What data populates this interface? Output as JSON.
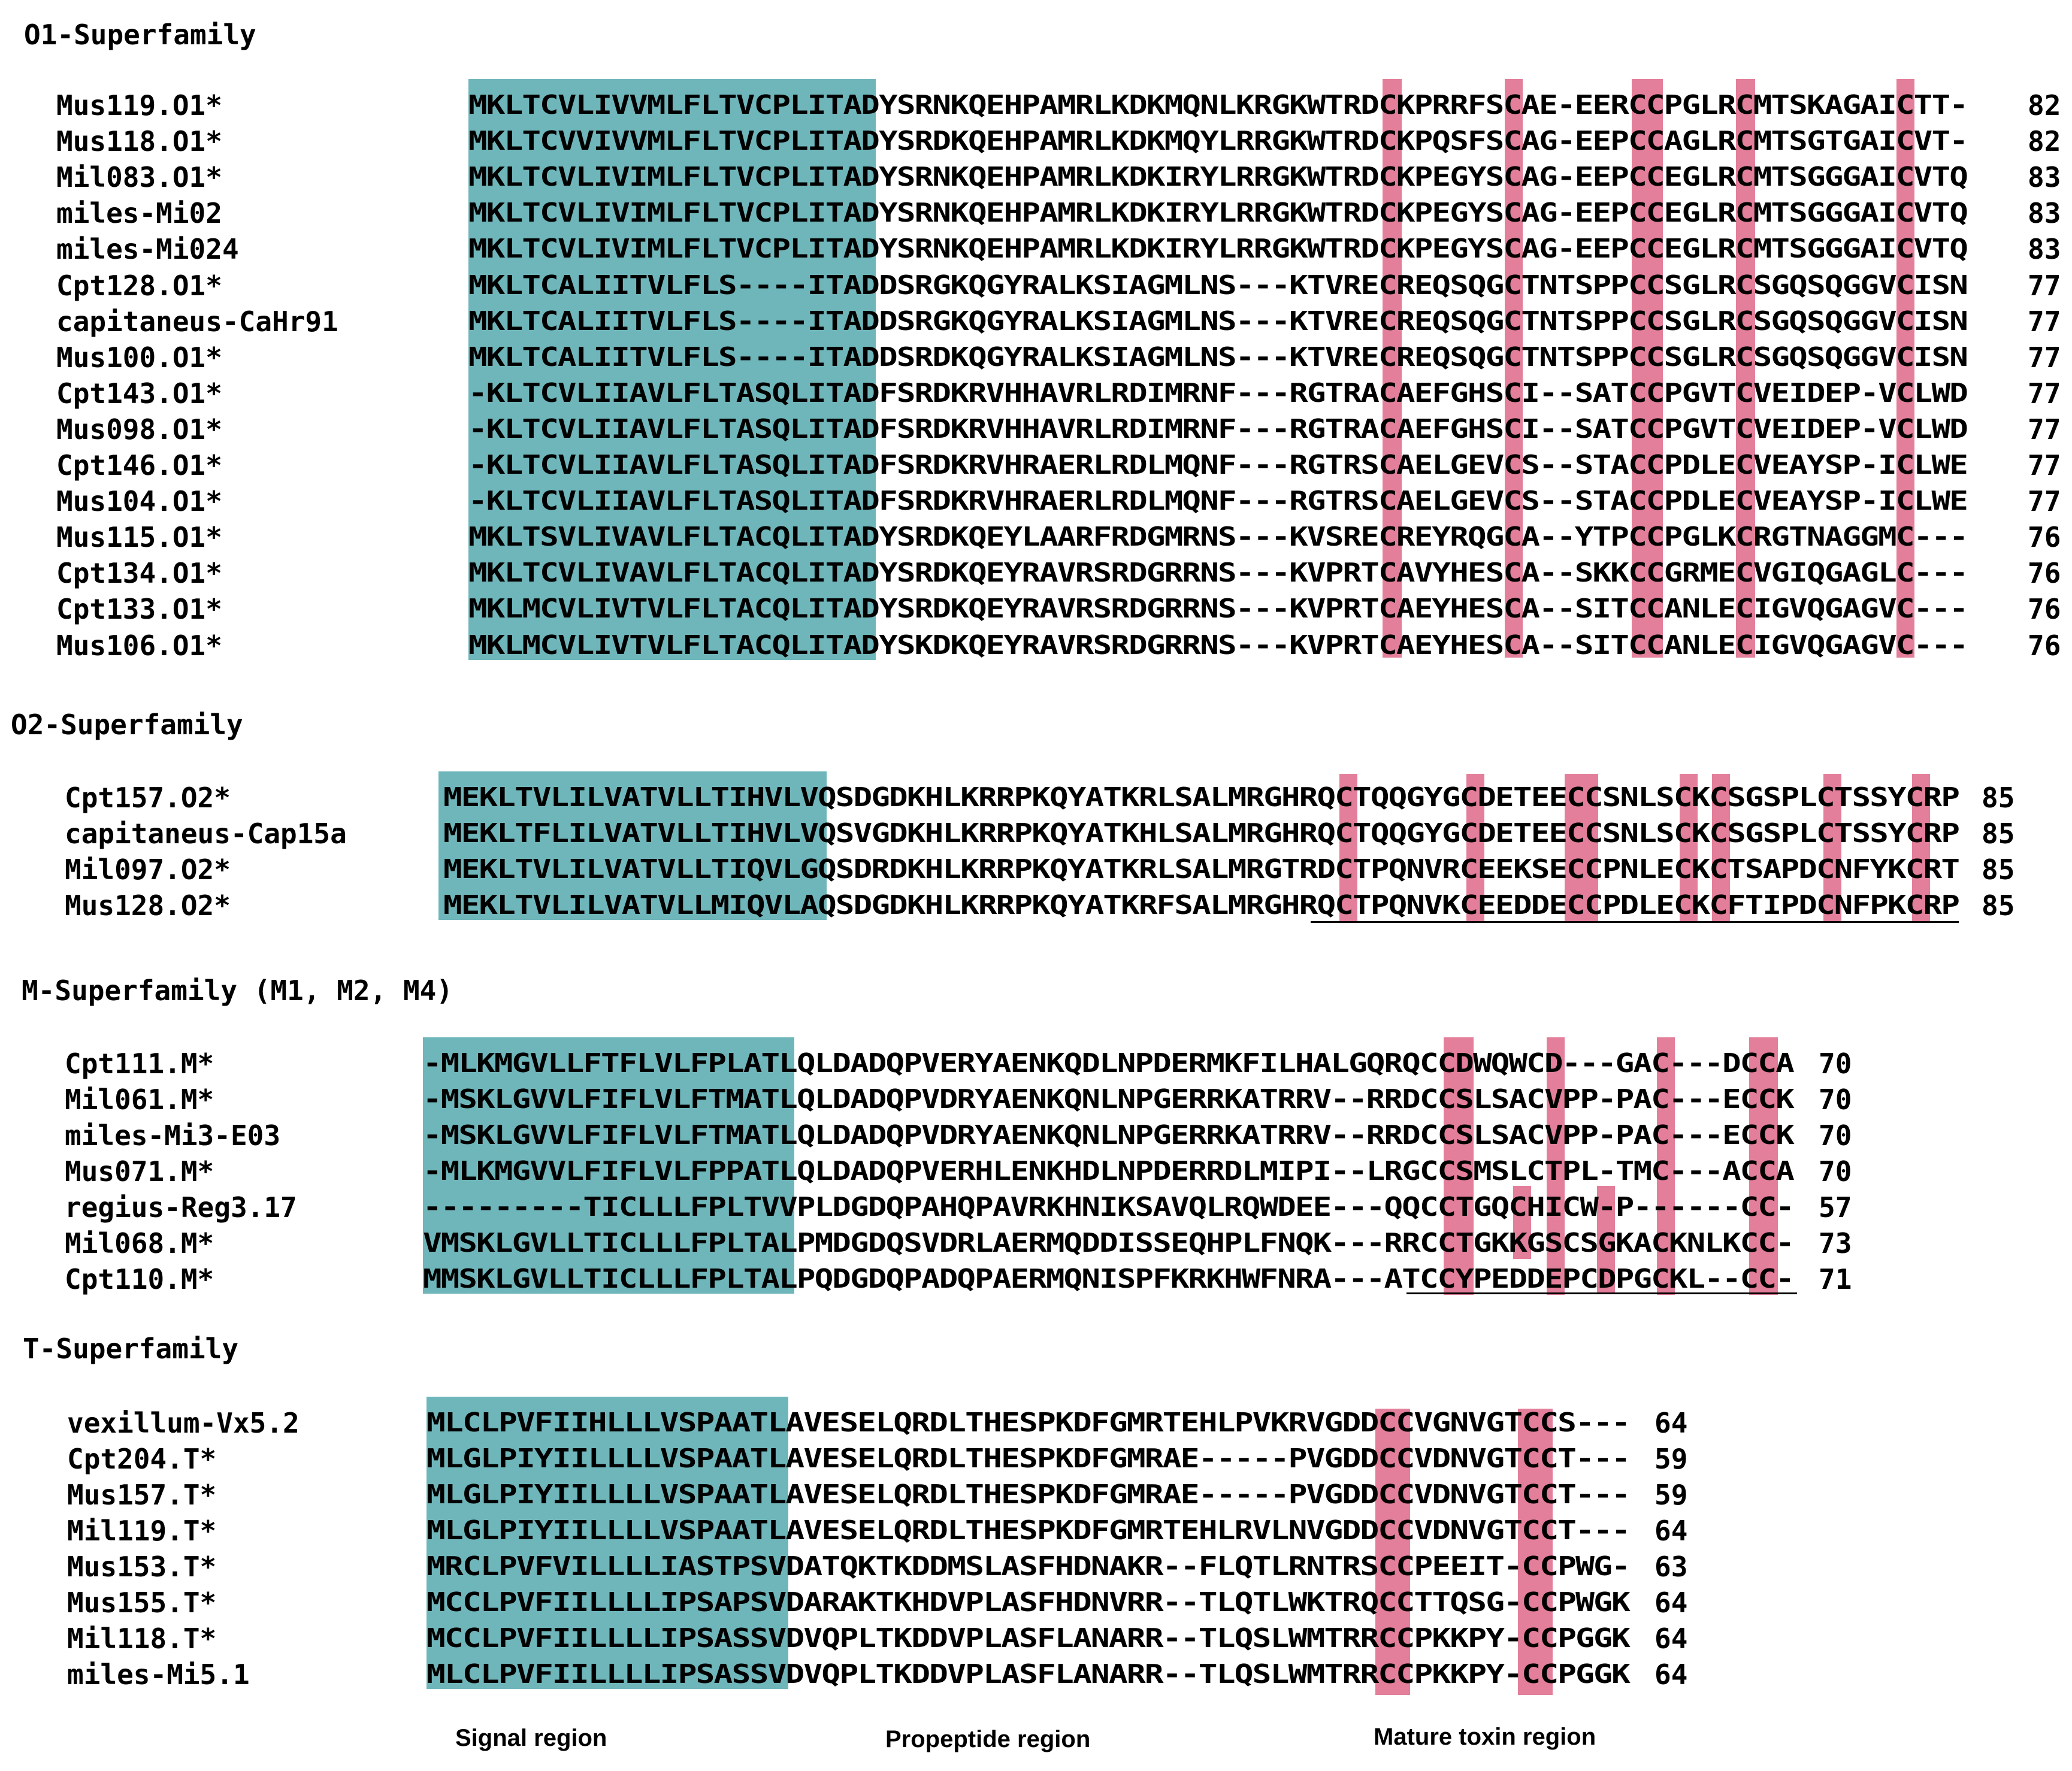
{
  "colors": {
    "signal": "#6fb6bb",
    "cysteine": "#e37f9a",
    "text": "#000000"
  },
  "legend": {
    "signal": "Signal region",
    "propeptide": "Propeptide region",
    "mature": "Mature toxin region"
  },
  "sections": {
    "o1": {
      "title": "O1-Superfamily",
      "rows": [
        {
          "name": "Mus119.O1*",
          "seq": "MKLTCVLIVVMLFLTVCPLITADYSRNKQEHPAMRLKDKMQNLKRGKWTRDCKPRRFSCAE-EERCCPGLRCMTSKAGAICTT-",
          "len": "82"
        },
        {
          "name": "Mus118.O1*",
          "seq": "MKLTCVVIVVMLFLTVCPLITADYSRDKQEHPAMRLKDKMQYLRRGKWTRDCKPQSFSCAG-EEPCCAGLRCMTSGTGAICVT-",
          "len": "82"
        },
        {
          "name": "Mil083.O1*",
          "seq": "MKLTCVLIVIMLFLTVCPLITADYSRNKQEHPAMRLKDKIRYLRRGKWTRDCKPEGYSCAG-EEPCCEGLRCMTSGGGAICVTQ",
          "len": "83"
        },
        {
          "name": "miles-Mi02",
          "seq": "MKLTCVLIVIMLFLTVCPLITADYSRNKQEHPAMRLKDKIRYLRRGKWTRDCKPEGYSCAG-EEPCCEGLRCMTSGGGAICVTQ",
          "len": "83"
        },
        {
          "name": "miles-Mi024",
          "seq": "MKLTCVLIVIMLFLTVCPLITADYSRNKQEHPAMRLKDKIRYLRRGKWTRDCKPEGYSCAG-EEPCCEGLRCMTSGGGAICVTQ",
          "len": "83"
        },
        {
          "name": "Cpt128.O1*",
          "seq": "MKLTCALIITVLFLS----ITADDSRGKQGYRALKSIAGMLNS---KTVRECREQSQGCTNTSPPCCSGLRCSGQSQGGVCISN",
          "len": "77"
        },
        {
          "name": "capitaneus-CaHr91",
          "seq": "MKLTCALIITVLFLS----ITADDSRGKQGYRALKSIAGMLNS---KTVRECREQSQGCTNTSPPCCSGLRCSGQSQGGVCISN",
          "len": "77"
        },
        {
          "name": "Mus100.O1*",
          "seq": "MKLTCALIITVLFLS----ITADDSRDKQGYRALKSIAGMLNS---KTVRECREQSQGCTNTSPPCCSGLRCSGQSQGGVCISN",
          "len": "77"
        },
        {
          "name": "Cpt143.O1*",
          "seq": "-KLTCVLIIAVLFLTASQLITADFSRDKRVHHAVRLRDIMRNF---RGTRACAEFGHSCI--SATCCPGVTCVEIDEP-VCLWD",
          "len": "77"
        },
        {
          "name": "Mus098.O1*",
          "seq": "-KLTCVLIIAVLFLTASQLITADFSRDKRVHHAVRLRDIMRNF---RGTRACAEFGHSCI--SATCCPGVTCVEIDEP-VCLWD",
          "len": "77"
        },
        {
          "name": "Cpt146.O1*",
          "seq": "-KLTCVLIIAVLFLTASQLITADFSRDKRVHRAERLRDLMQNF---RGTRSCAELGEVCS--STACCPDLECVEAYSP-ICLWE",
          "len": "77"
        },
        {
          "name": "Mus104.O1*",
          "seq": "-KLTCVLIIAVLFLTASQLITADFSRDKRVHRAERLRDLMQNF---RGTRSCAELGEVCS--STACCPDLECVEAYSP-ICLWE",
          "len": "77"
        },
        {
          "name": "Mus115.O1*",
          "seq": "MKLTSVLIVAVLFLTACQLITADYSRDKQEYLAARFRDGMRNS---KVSRECREYRQGCA--YTPCCPGLKCRGTNAGGMC---",
          "len": "76"
        },
        {
          "name": "Cpt134.O1*",
          "seq": "MKLTCVLIVAVLFLTACQLITADYSRDKQEYRAVRSRDGRRNS---KVPRTCAVYHESCA--SKKCCGRMECVGIQGAGLC---",
          "len": "76"
        },
        {
          "name": "Cpt133.O1*",
          "seq": "MKLMCVLIVTVLFLTACQLITADYSRDKQEYRAVRSRDGRRNS---KVPRTCAEYHESCA--SITCCANLECIGVQGAGVC---",
          "len": "76"
        },
        {
          "name": "Mus106.O1*",
          "seq": "MKLMCVLIVTVLFLTACQLITADYSKDKQEYRAVRSRDGRRNS---KVPRTCAEYHESCA--SITCCANLECIGVQGAGVC---",
          "len": "76"
        }
      ]
    },
    "o2": {
      "title": "O2-Superfamily",
      "rows": [
        {
          "name": "Cpt157.O2*",
          "seq": "MEKLTVLILVATVLLTIHVLVQSDGDKHLKRRPKQYATKRLSALMRGHRQCTQQGYGCDETEECCSNLSCKCSGSPLCTSSYCRP",
          "len": "85"
        },
        {
          "name": "capitaneus-Cap15a",
          "seq": "MEKLTFLILVATVLLTIHVLVQSVGDKHLKRRPKQYATKHLSALMRGHRQCTQQGYGCDETEECCSNLSCKCSGSPLCTSSYCRP",
          "len": "85"
        },
        {
          "name": "Mil097.O2*",
          "seq": "MEKLTVLILVATVLLTIQVLGQSDRDKHLKRRPKQYATKRLSALMRGTRDCTPQNVRCEEKSECCPNLECKCTSAPDCNFYKCRT",
          "len": "85"
        },
        {
          "name": "Mus128.O2*",
          "seq": "MEKLTVLILVATVLLMIQVLAQSDGDKHLKRRPKQYATKRFSALMRGHRQCTPQNVKCEEDDECCPDLECKCFTIPDCNFPKCRP",
          "len": "85"
        }
      ]
    },
    "m": {
      "title": "M-Superfamily (M1, M2, M4)",
      "rows": [
        {
          "name": "Cpt111.M*",
          "seq": "-MLKMGVLLFTFLVLFPLATLQLDADQPVERYAENKQDLNPDERMKFILHALGQRQCCDWQWCD---GAC---DCCA",
          "len": "70"
        },
        {
          "name": "Mil061.M*",
          "seq": "-MSKLGVVLFIFLVLFTMATLQLDADQPVDRYAENKQNLNPGERRKATRRV--RRDCCSLSACVPP-PAC---ECCK",
          "len": "70"
        },
        {
          "name": "miles-Mi3-E03",
          "seq": "-MSKLGVVLFIFLVLFTMATLQLDADQPVDRYAENKQNLNPGERRKATRRV--RRDCCSLSACVPP-PAC---ECCK",
          "len": "70"
        },
        {
          "name": "Mus071.M*",
          "seq": "-MLKMGVVLFIFLVLFPPATLQLDADQPVERHLENKHDLNPDERRDLMIPI--LRGCCSMSLCTPL-TMC---ACCA",
          "len": "70"
        },
        {
          "name": "regius-Reg3.17",
          "seq": "---------TICLLLFPLTVVPLDGDQPAHQPAVRKHNIKSAVQLRQWDEE---QQCCTGQCHICW-P------CC-",
          "len": "57"
        },
        {
          "name": "Mil068.M*",
          "seq": "VMSKLGVLLTICLLLFPLTALPMDGDQSVDRLAERMQDDISSEQHPLFNQK---RRCCTGKKGSCSGKACKNLKCC-",
          "len": "73"
        },
        {
          "name": "Cpt110.M*",
          "seq": "MMSKLGVLLTICLLLFPLTALPQDGDQPADQPAERMQNISPFKRKHWFNRA---ATCCYPEDDEPCDPGCKL--CC-",
          "len": "71"
        }
      ]
    },
    "t": {
      "title": "T-Superfamily",
      "rows": [
        {
          "name": "vexillum-Vx5.2",
          "seq": "MLCLPVFIIHLLLVSPAATLAVESELQRDLTHESPKDFGMRTEHLPVKRVGDDCCVGNVGTCCS---",
          "len": "64"
        },
        {
          "name": "Cpt204.T*",
          "seq": "MLGLPIYIILLLLVSPAATLAVESELQRDLTHESPKDFGMRAE-----PVGDDCCVDNVGTCCT---",
          "len": "59"
        },
        {
          "name": "Mus157.T*",
          "seq": "MLGLPIYIILLLLVSPAATLAVESELQRDLTHESPKDFGMRAE-----PVGDDCCVDNVGTCCT---",
          "len": "59"
        },
        {
          "name": "Mil119.T*",
          "seq": "MLGLPIYIILLLLVSPAATLAVESELQRDLTHESPKDFGMRTEHLRVLNVGDDCCVDNVGTCCT---",
          "len": "64"
        },
        {
          "name": "Mus153.T*",
          "seq": "MRCLPVFVILLLLIASTPSVDATQKTKDDMSLASFHDNAKR--FLQTLRNTRSCCPEEIT-CCPWG-",
          "len": "63"
        },
        {
          "name": "Mus155.T*",
          "seq": "MCCLPVFIILLLLIPSAPSVDARAKTKHDVPLASFHDNVRR--TLQTLWKTRQCCTTQSG-CCPWGK",
          "len": "64"
        },
        {
          "name": "Mil118.T*",
          "seq": "MCCLPVFIILLLLIPSASSVDVQPLTKDDVPLASFLANARR--TLQSLWMTRRCCPKKPY-CCPGGK",
          "len": "64"
        },
        {
          "name": "miles-Mi5.1",
          "seq": "MLCLPVFIILLLLIPSASSVDVQPLTKDDVPLASFLANARR--TLQSLWMTRRCCPKKPY-CCPGGK",
          "len": "64"
        }
      ]
    }
  }
}
